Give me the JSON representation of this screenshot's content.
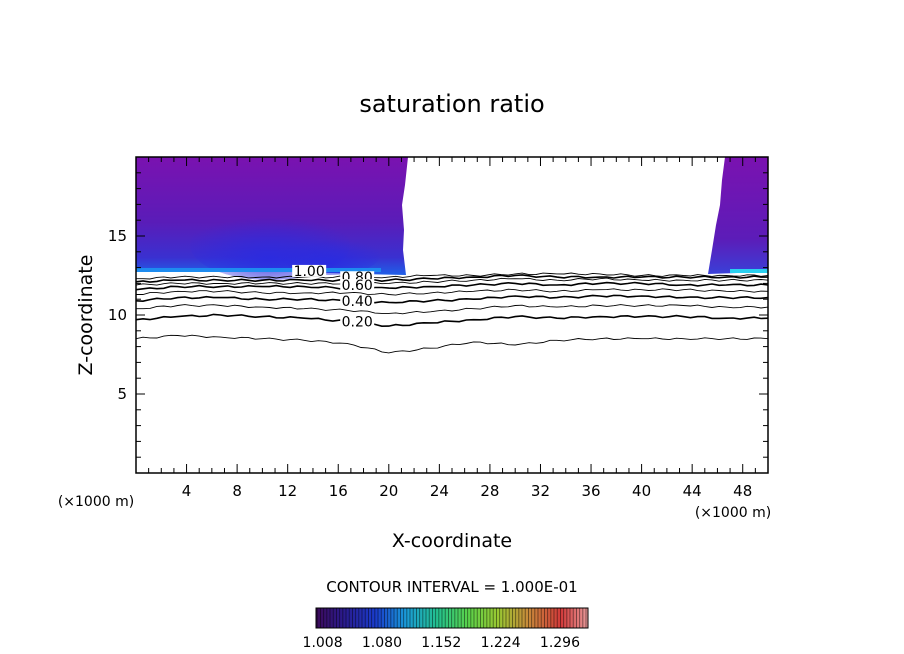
{
  "chart_data": {
    "type": "contour",
    "title": "saturation ratio",
    "xlabel": "X-coordinate",
    "ylabel": "Z-coordinate",
    "x_unit": "(×1000 m)",
    "x_unit_right": "(×1000 m)",
    "xlim": [
      0,
      50
    ],
    "ylim": [
      0,
      20
    ],
    "xticks": [
      4,
      8,
      12,
      16,
      20,
      24,
      28,
      32,
      36,
      40,
      44,
      48
    ],
    "yticks": [
      5,
      10,
      15
    ],
    "contour_interval_text": "CONTOUR INTERVAL = 1.000E-01",
    "contour_labels": [
      {
        "text": "1.00",
        "x": 13.7,
        "z": 12.6
      },
      {
        "text": "0.80",
        "x": 17.5,
        "z": 12.2
      },
      {
        "text": "0.60",
        "x": 17.5,
        "z": 11.7
      },
      {
        "text": "0.40",
        "x": 17.5,
        "z": 10.7
      },
      {
        "text": "0.20",
        "x": 17.5,
        "z": 9.4
      }
    ],
    "contour_lines": [
      {
        "level": 0.1,
        "z": [
          8.5,
          8.7,
          8.6,
          8.5,
          8.4,
          8.2,
          7.6,
          7.9,
          8.3,
          8.1,
          8.4,
          8.5,
          8.5,
          8.5,
          8.5,
          8.5
        ]
      },
      {
        "level": 0.2,
        "z": [
          9.7,
          9.9,
          10.0,
          9.9,
          9.8,
          9.6,
          9.3,
          9.5,
          9.7,
          9.9,
          9.8,
          9.9,
          9.9,
          9.9,
          9.8,
          9.8
        ]
      },
      {
        "level": 0.3,
        "z": [
          10.4,
          10.6,
          10.6,
          10.5,
          10.4,
          10.3,
          10.1,
          10.2,
          10.4,
          10.6,
          10.5,
          10.6,
          10.6,
          10.6,
          10.5,
          10.5
        ]
      },
      {
        "level": 0.4,
        "z": [
          10.9,
          11.1,
          11.1,
          11.0,
          11.0,
          10.9,
          10.8,
          10.9,
          11.0,
          11.2,
          11.1,
          11.2,
          11.2,
          11.1,
          11.1,
          11.1
        ]
      },
      {
        "level": 0.5,
        "z": [
          11.3,
          11.5,
          11.5,
          11.4,
          11.4,
          11.4,
          11.3,
          11.4,
          11.5,
          11.6,
          11.5,
          11.6,
          11.6,
          11.6,
          11.5,
          11.5
        ]
      },
      {
        "level": 0.6,
        "z": [
          11.6,
          11.8,
          11.8,
          11.8,
          11.8,
          11.7,
          11.7,
          11.8,
          11.9,
          12.0,
          11.9,
          12.0,
          12.0,
          11.9,
          11.9,
          11.9
        ]
      },
      {
        "level": 0.7,
        "z": [
          11.9,
          12.0,
          12.0,
          12.0,
          12.0,
          12.0,
          12.0,
          12.1,
          12.2,
          12.3,
          12.2,
          12.3,
          12.2,
          12.2,
          12.2,
          12.2
        ]
      },
      {
        "level": 0.8,
        "z": [
          12.1,
          12.2,
          12.2,
          12.2,
          12.2,
          12.2,
          12.2,
          12.3,
          12.4,
          12.5,
          12.4,
          12.4,
          12.4,
          12.4,
          12.4,
          12.4
        ]
      },
      {
        "level": 0.9,
        "z": [
          12.3,
          12.4,
          12.4,
          12.4,
          12.4,
          12.4,
          12.4,
          12.5,
          12.5,
          12.6,
          12.6,
          12.6,
          12.5,
          12.5,
          12.5,
          12.5
        ]
      }
    ],
    "contour_x": [
      0,
      3.3,
      6.7,
      10,
      13.3,
      16.7,
      20,
      23.3,
      26.7,
      30,
      33.3,
      36.7,
      40,
      43.3,
      46.7,
      50
    ],
    "colorbar": {
      "tick_labels": [
        "1.008",
        "1.080",
        "1.152",
        "1.224",
        "1.296"
      ],
      "range": [
        1.0,
        1.33
      ],
      "colors": [
        "#3d0a5a",
        "#2a1a8c",
        "#1a3ccc",
        "#1a9ad8",
        "#24c28c",
        "#5ad24a",
        "#9ac832",
        "#c88a3a",
        "#d23a3a",
        "#e89a9a"
      ]
    },
    "supersaturated_regions": [
      {
        "x_range": [
          0,
          21.5
        ],
        "z_range": [
          12.5,
          20
        ]
      },
      {
        "x_range": [
          45,
          50
        ],
        "z_range": [
          12.5,
          20
        ]
      }
    ]
  }
}
